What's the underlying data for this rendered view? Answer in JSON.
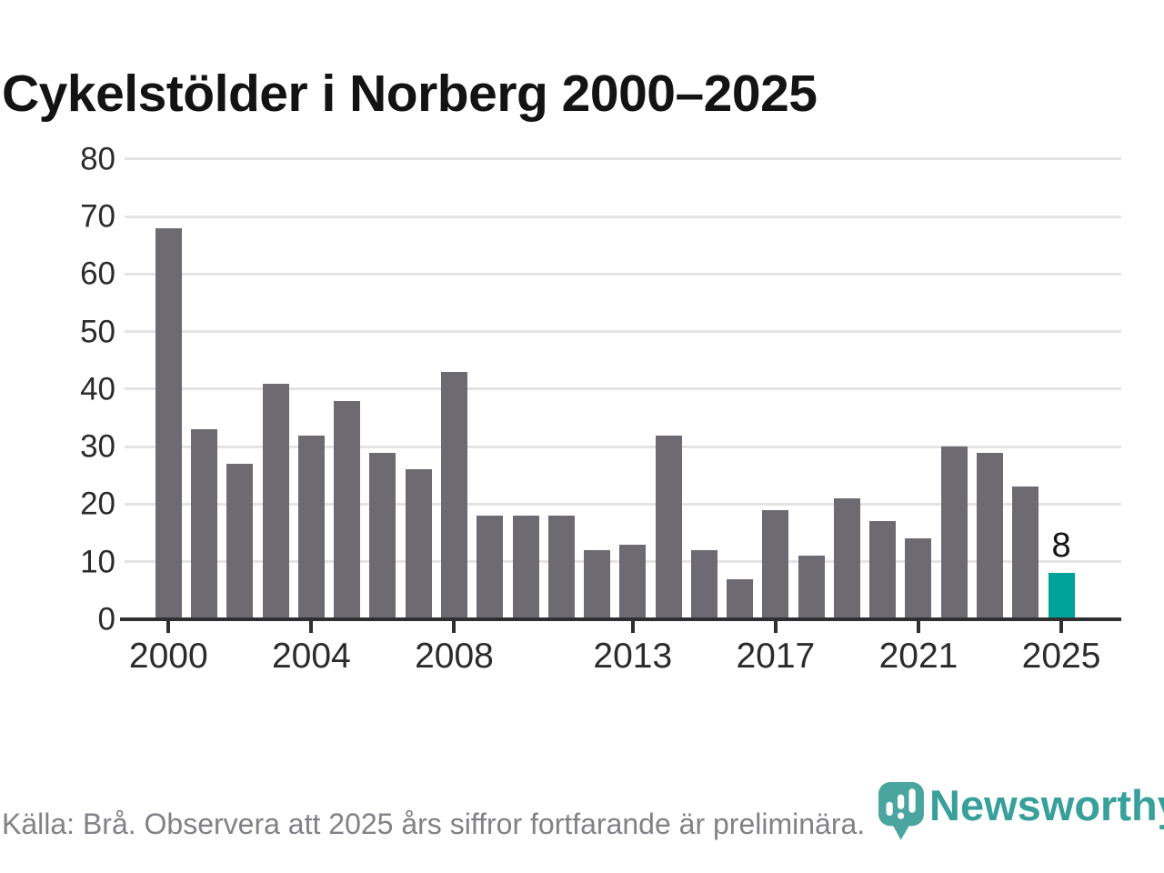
{
  "chart_data": {
    "type": "bar",
    "title": "Cykelstölder i Norberg 2000–2025",
    "categories": [
      2000,
      2001,
      2002,
      2003,
      2004,
      2005,
      2006,
      2007,
      2008,
      2009,
      2010,
      2011,
      2012,
      2013,
      2014,
      2015,
      2016,
      2017,
      2018,
      2019,
      2020,
      2021,
      2022,
      2023,
      2024,
      2025
    ],
    "values": [
      68,
      33,
      27,
      41,
      32,
      38,
      29,
      26,
      43,
      18,
      18,
      18,
      12,
      13,
      32,
      12,
      7,
      19,
      11,
      21,
      17,
      14,
      30,
      29,
      23,
      8
    ],
    "ylim": [
      0,
      80
    ],
    "yticks": [
      0,
      10,
      20,
      30,
      40,
      50,
      60,
      70,
      80
    ],
    "xticks": [
      2000,
      2004,
      2008,
      2013,
      2017,
      2021,
      2025
    ],
    "grid": "horizontal",
    "legend": "none",
    "bar_color": "#6d6a72",
    "highlight": {
      "year": 2025,
      "value_label": "8",
      "color": "#00a39a"
    }
  },
  "footer": {
    "source": "Källa: Brå. Observera att 2025 års siffror fortfarande är preliminära.",
    "brand": "Newsworthy",
    "brand_color": "#38a09a"
  }
}
